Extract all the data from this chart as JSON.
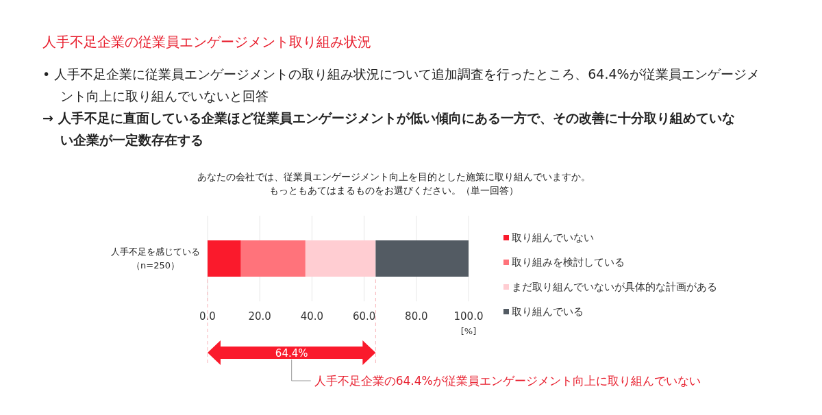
{
  "chart_data": {
    "type": "bar",
    "orientation": "horizontal",
    "stacked": true,
    "title": "人手不足企業の従業員エンゲージメント取り組み状況",
    "subtitle": "あなたの会社では、従業員エンゲージメント向上を目的とした施策に取り組んでいますか。もっともあてはまるものをお選びください。（単一回答）",
    "xlabel": "[%]",
    "categories": [
      "人手不足を感じている（n=250）"
    ],
    "series": [
      {
        "name": "取り組んでいない",
        "color": "#fa1a2c",
        "values": [
          12.8
        ]
      },
      {
        "name": "取り組みを検討している",
        "color": "#ff737b",
        "values": [
          24.7
        ]
      },
      {
        "name": "まだ取り組んでいないが具体的な計画がある",
        "color": "#ffcdd2",
        "values": [
          26.9
        ]
      },
      {
        "name": "取り組んでいる",
        "color": "#535b63",
        "values": [
          35.6
        ]
      }
    ],
    "xlim": [
      0,
      100
    ],
    "xticks": [
      {
        "value": 0,
        "label": "0.0"
      },
      {
        "value": 20,
        "label": "20.0"
      },
      {
        "value": 40,
        "label": "40.0"
      },
      {
        "value": 60,
        "label": "60.0"
      },
      {
        "value": 80,
        "label": "80.0"
      },
      {
        "value": 100,
        "label": "100.0"
      }
    ],
    "grid": "x",
    "legend": "right",
    "annotations": [
      "• 人手不足企業に従業員エンゲージメントの取り組み状況について追加調査を行ったところ、64.4%が従業員エンゲージメント向上に取り組んでいないと回答",
      "→ 人手不足に直面している企業ほど従業員エンゲージメントが低い傾向にある一方で、その改善に十分取り組めていない企業が一定数存在する",
      "64.4%",
      "人手不足企業の64.4%が従業員エンゲージメント向上に取り組んでいない"
    ]
  }
}
